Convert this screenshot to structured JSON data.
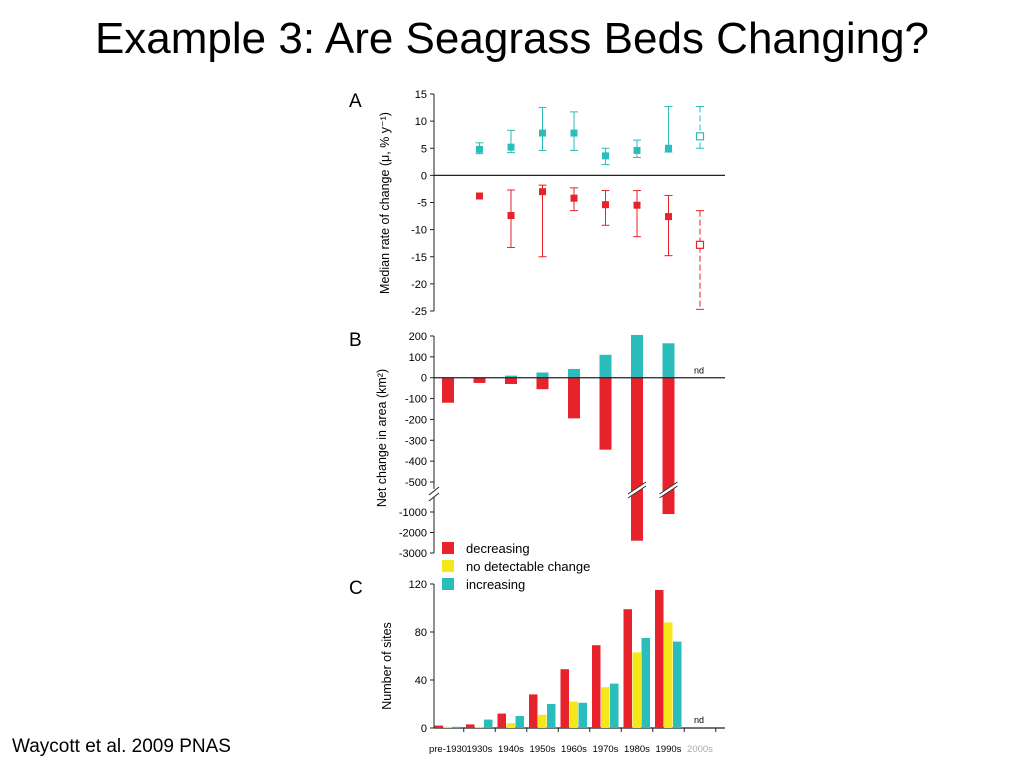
{
  "slide": {
    "title": "Example 3: Are Seagrass Beds Changing?",
    "citation": "Waycott et al. 2009 PNAS"
  },
  "colors": {
    "decreasing": "#e8222a",
    "no_change": "#f5e81a",
    "increasing": "#2bbcbc"
  },
  "chart_data": [
    {
      "panel": "A",
      "type": "scatter",
      "ylabel": "Median rate of change (μ, % y⁻¹)",
      "ylim": [
        -25,
        15
      ],
      "yticks": [
        15,
        10,
        5,
        0,
        -5,
        -10,
        -15,
        -20,
        -25
      ],
      "categories": [
        "pre-1930",
        "1930s",
        "1940s",
        "1950s",
        "1960s",
        "1970s",
        "1980s",
        "1990s",
        "2000s"
      ],
      "series": [
        {
          "color_key": "increasing",
          "points": [
            {
              "cat": "1930s",
              "y": 4.8,
              "lo": 4.0,
              "hi": 6.0
            },
            {
              "cat": "1940s",
              "y": 5.2,
              "lo": 4.2,
              "hi": 8.3
            },
            {
              "cat": "1950s",
              "y": 7.8,
              "lo": 4.6,
              "hi": 12.5
            },
            {
              "cat": "1960s",
              "y": 7.8,
              "lo": 4.6,
              "hi": 11.7
            },
            {
              "cat": "1970s",
              "y": 3.6,
              "lo": 2.0,
              "hi": 5.0
            },
            {
              "cat": "1980s",
              "y": 4.6,
              "lo": 3.3,
              "hi": 6.5
            },
            {
              "cat": "1990s",
              "y": 5.0,
              "lo": 4.3,
              "hi": 12.7
            },
            {
              "cat": "2000s",
              "y": 7.2,
              "lo": 5.0,
              "hi": 12.7,
              "open": true
            }
          ]
        },
        {
          "color_key": "decreasing",
          "points": [
            {
              "cat": "1930s",
              "y": -3.8
            },
            {
              "cat": "1940s",
              "y": -7.4,
              "lo": -13.3,
              "hi": -2.7
            },
            {
              "cat": "1950s",
              "y": -3.0,
              "lo": -15.0,
              "hi": -1.8
            },
            {
              "cat": "1960s",
              "y": -4.2,
              "lo": -6.5,
              "hi": -2.3
            },
            {
              "cat": "1970s",
              "y": -5.4,
              "lo": -9.2,
              "hi": -2.8
            },
            {
              "cat": "1980s",
              "y": -5.5,
              "lo": -11.3,
              "hi": -2.8
            },
            {
              "cat": "1990s",
              "y": -7.6,
              "lo": -14.8,
              "hi": -3.7
            },
            {
              "cat": "2000s",
              "y": -12.8,
              "lo": -24.7,
              "hi": -6.5,
              "open": true
            }
          ]
        }
      ]
    },
    {
      "panel": "B",
      "type": "bar",
      "ylabel": "Net change in area (km²)",
      "yticks_upper": [
        200,
        100,
        0,
        -100,
        -200,
        -300,
        -400,
        -500
      ],
      "yticks_lower": [
        -1000,
        -2000,
        -3000
      ],
      "axis_break": true,
      "categories": [
        "pre-1930",
        "1930s",
        "1940s",
        "1950s",
        "1960s",
        "1970s",
        "1980s",
        "1990s",
        "2000s"
      ],
      "series": [
        {
          "name": "decreasing",
          "values": [
            -120,
            -25,
            -30,
            -55,
            -195,
            -345,
            -2400,
            -1100,
            null
          ]
        },
        {
          "name": "increasing",
          "values": [
            0,
            0,
            10,
            25,
            42,
            110,
            205,
            165,
            null
          ]
        }
      ],
      "annotation": "nd"
    },
    {
      "panel": "C",
      "type": "bar",
      "ylabel": "Number of sites",
      "ylim": [
        0,
        120
      ],
      "yticks": [
        0,
        40,
        80,
        120
      ],
      "categories": [
        "pre-1930",
        "1930s",
        "1940s",
        "1950s",
        "1960s",
        "1970s",
        "1980s",
        "1990s",
        "2000s"
      ],
      "series": [
        {
          "name": "decreasing",
          "values": [
            2,
            3,
            12,
            28,
            49,
            69,
            99,
            115,
            null
          ]
        },
        {
          "name": "no detectable change",
          "values": [
            1,
            1,
            4,
            11,
            22,
            34,
            63,
            88,
            null
          ]
        },
        {
          "name": "increasing",
          "values": [
            1,
            7,
            10,
            20,
            21,
            37,
            75,
            72,
            null
          ]
        }
      ],
      "legend": {
        "placement": "top-left",
        "entries": [
          {
            "label": "decreasing",
            "color_key": "decreasing"
          },
          {
            "label": "no detectable change",
            "color_key": "no_change"
          },
          {
            "label": "increasing",
            "color_key": "increasing"
          }
        ]
      },
      "annotation": "nd"
    }
  ]
}
